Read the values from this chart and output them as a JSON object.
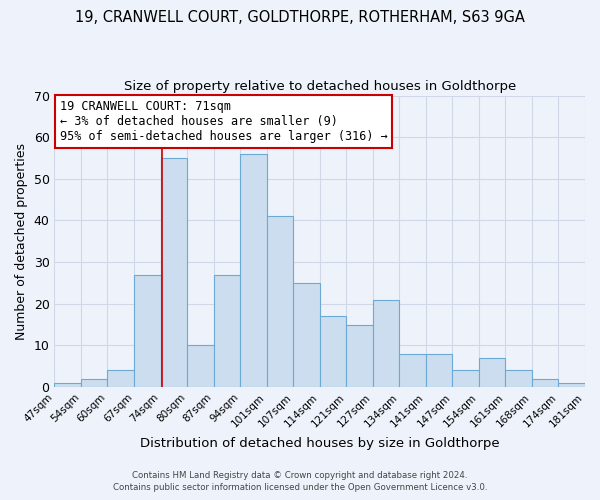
{
  "title": "19, CRANWELL COURT, GOLDTHORPE, ROTHERHAM, S63 9GA",
  "subtitle": "Size of property relative to detached houses in Goldthorpe",
  "xlabel": "Distribution of detached houses by size in Goldthorpe",
  "ylabel": "Number of detached properties",
  "bin_labels": [
    "47sqm",
    "54sqm",
    "60sqm",
    "67sqm",
    "74sqm",
    "80sqm",
    "87sqm",
    "94sqm",
    "101sqm",
    "107sqm",
    "114sqm",
    "121sqm",
    "127sqm",
    "134sqm",
    "141sqm",
    "147sqm",
    "154sqm",
    "161sqm",
    "168sqm",
    "174sqm",
    "181sqm"
  ],
  "bin_values": [
    1,
    2,
    4,
    27,
    55,
    10,
    27,
    56,
    41,
    25,
    17,
    15,
    21,
    8,
    8,
    4,
    7,
    4,
    2,
    1
  ],
  "bar_color": "#ccddf0",
  "bar_edge_color": "#6aaad4",
  "annotation_box_text": "19 CRANWELL COURT: 71sqm\n← 3% of detached houses are smaller (9)\n95% of semi-detached houses are larger (316) →",
  "annotation_box_color": "#ffffff",
  "annotation_box_edge_color": "#cc0000",
  "red_line_x": 3.57,
  "ylim": [
    0,
    70
  ],
  "yticks": [
    0,
    10,
    20,
    30,
    40,
    50,
    60,
    70
  ],
  "footer1": "Contains HM Land Registry data © Crown copyright and database right 2024.",
  "footer2": "Contains public sector information licensed under the Open Government Licence v3.0.",
  "background_color": "#eef3fb",
  "title_fontsize": 10.5,
  "subtitle_fontsize": 9.5,
  "grid_color": "#d0d8e8"
}
